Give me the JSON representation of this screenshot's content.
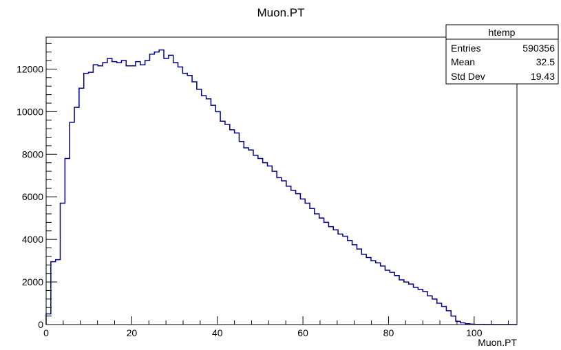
{
  "chart_data": {
    "type": "bar",
    "title": "Muon.PT",
    "xlabel": "Muon.PT",
    "ylabel": "",
    "xlim": [
      0,
      110
    ],
    "ylim": [
      0,
      13500
    ],
    "x_ticks": [
      0,
      20,
      40,
      60,
      80,
      100
    ],
    "y_ticks": [
      0,
      2000,
      4000,
      6000,
      8000,
      10000,
      12000
    ],
    "bin_width": 1.1,
    "line_color": "#00008b",
    "values": [
      500,
      2950,
      3050,
      5700,
      7800,
      9500,
      10200,
      11100,
      11800,
      11850,
      12200,
      12150,
      12300,
      12500,
      12350,
      12300,
      12400,
      12150,
      12150,
      12350,
      12200,
      12400,
      12700,
      12800,
      12900,
      12500,
      12650,
      12300,
      12100,
      11800,
      11700,
      11400,
      11050,
      10750,
      10600,
      10300,
      10000,
      9550,
      9400,
      9150,
      9000,
      8600,
      8300,
      8200,
      7950,
      7800,
      7600,
      7450,
      7200,
      6900,
      6750,
      6500,
      6300,
      6150,
      5900,
      5700,
      5450,
      5200,
      5000,
      4800,
      4600,
      4450,
      4250,
      4150,
      3950,
      3750,
      3550,
      3300,
      3150,
      3000,
      2900,
      2750,
      2550,
      2450,
      2300,
      2100,
      2000,
      1900,
      1750,
      1650,
      1550,
      1350,
      1200,
      1000,
      850,
      650,
      400,
      150,
      80,
      40,
      20,
      10,
      8,
      5,
      3,
      0,
      0,
      0,
      0,
      0
    ],
    "stats": {
      "name": "htemp",
      "rows": [
        {
          "label": "Entries",
          "value": "590356"
        },
        {
          "label": "Mean",
          "value": "32.5"
        },
        {
          "label": "Std Dev",
          "value": "19.43"
        }
      ]
    }
  }
}
